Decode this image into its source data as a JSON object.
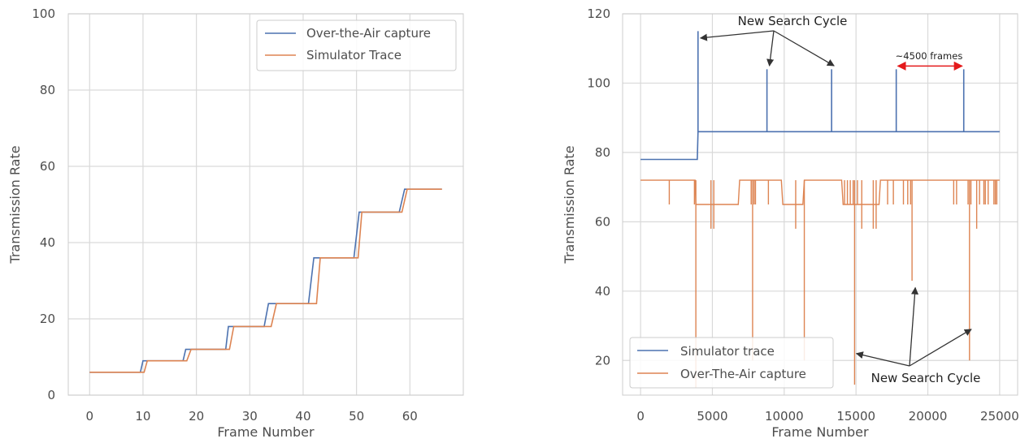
{
  "chart_data": [
    {
      "type": "line",
      "xlabel": "Frame Number",
      "ylabel": "Transmission Rate",
      "xlim": [
        -4,
        70
      ],
      "ylim": [
        0,
        100
      ],
      "xticks": [
        0,
        10,
        20,
        30,
        40,
        50,
        60
      ],
      "yticks": [
        0,
        20,
        40,
        60,
        80,
        100
      ],
      "grid": true,
      "legend_position": "top-right",
      "series": [
        {
          "name": "Over-the-Air capture",
          "color": "#4c72b0",
          "points": [
            [
              0,
              6
            ],
            [
              9.5,
              6
            ],
            [
              10,
              9
            ],
            [
              17.5,
              9
            ],
            [
              18,
              12
            ],
            [
              25.5,
              12
            ],
            [
              26,
              18
            ],
            [
              32.7,
              18
            ],
            [
              33.5,
              24
            ],
            [
              41,
              24
            ],
            [
              42,
              36
            ],
            [
              49.5,
              36
            ],
            [
              50.5,
              48
            ],
            [
              58,
              48
            ],
            [
              59,
              54
            ],
            [
              66,
              54
            ]
          ]
        },
        {
          "name": "Simulator Trace",
          "color": "#dd8452",
          "points": [
            [
              0,
              6
            ],
            [
              10.2,
              6
            ],
            [
              10.8,
              9
            ],
            [
              18.2,
              9
            ],
            [
              19,
              12
            ],
            [
              26.2,
              12
            ],
            [
              27,
              18
            ],
            [
              34,
              18
            ],
            [
              35,
              24
            ],
            [
              42.5,
              24
            ],
            [
              43.2,
              36
            ],
            [
              50.3,
              36
            ],
            [
              51,
              48
            ],
            [
              58.5,
              48
            ],
            [
              59.5,
              54
            ],
            [
              66,
              54
            ]
          ]
        }
      ]
    },
    {
      "type": "line",
      "xlabel": "Frame Number",
      "ylabel": "Transmission Rate",
      "xlim": [
        -1250,
        26250
      ],
      "ylim": [
        10,
        120
      ],
      "xticks": [
        0,
        5000,
        10000,
        15000,
        20000,
        25000
      ],
      "yticks": [
        20,
        40,
        60,
        80,
        100,
        120
      ],
      "grid": true,
      "legend_position": "bottom-left",
      "series": [
        {
          "name": "Simulator trace",
          "color": "#4c72b0",
          "baseline": [
            [
              0,
              78
            ],
            [
              3950,
              78
            ],
            [
              4000,
              86
            ],
            [
              25000,
              86
            ]
          ],
          "spikes": [
            [
              4000,
              115
            ],
            [
              8800,
              104
            ],
            [
              13300,
              104
            ],
            [
              17800,
              104
            ],
            [
              22500,
              104
            ]
          ]
        },
        {
          "name": "Over-The-Air capture",
          "color": "#dd8452",
          "segments": [
            [
              0,
              72
            ],
            [
              3800,
              72
            ],
            [
              3850,
              65
            ],
            [
              6800,
              65
            ],
            [
              6900,
              72
            ],
            [
              9800,
              72
            ],
            [
              9900,
              65
            ],
            [
              11300,
              65
            ],
            [
              11400,
              72
            ],
            [
              14000,
              72
            ],
            [
              14100,
              65
            ],
            [
              16600,
              65
            ],
            [
              16700,
              72
            ],
            [
              25000,
              72
            ]
          ],
          "spikes": [
            [
              2000,
              65
            ],
            [
              3750,
              65
            ],
            [
              4900,
              58
            ],
            [
              5100,
              58
            ],
            [
              7700,
              65
            ],
            [
              7900,
              65
            ],
            [
              8000,
              65
            ],
            [
              8900,
              65
            ],
            [
              10800,
              58
            ],
            [
              14200,
              65
            ],
            [
              14400,
              65
            ],
            [
              14600,
              65
            ],
            [
              14800,
              65
            ],
            [
              15100,
              65
            ],
            [
              15400,
              58
            ],
            [
              16200,
              58
            ],
            [
              16400,
              58
            ],
            [
              17200,
              65
            ],
            [
              17600,
              65
            ],
            [
              18300,
              65
            ],
            [
              18600,
              65
            ],
            [
              18800,
              65
            ],
            [
              21800,
              65
            ],
            [
              22000,
              65
            ],
            [
              22800,
              65
            ],
            [
              23000,
              65
            ],
            [
              23400,
              58
            ],
            [
              23600,
              65
            ],
            [
              23900,
              65
            ],
            [
              24000,
              65
            ],
            [
              24200,
              65
            ],
            [
              24600,
              65
            ],
            [
              24800,
              65
            ],
            [
              3850,
              12
            ],
            [
              7800,
              20
            ],
            [
              11400,
              20
            ],
            [
              14900,
              13
            ],
            [
              18900,
              43
            ],
            [
              22900,
              20
            ],
            [
              24700,
              65
            ]
          ]
        }
      ],
      "annotations": [
        {
          "text": "New Search Cycle",
          "targets": [
            [
              4000,
              113
            ],
            [
              8800,
              105
            ],
            [
              13300,
              105
            ]
          ]
        },
        {
          "text": "New Search Cycle",
          "targets": [
            [
              14800,
              22
            ],
            [
              18900,
              41
            ],
            [
              22800,
              29
            ]
          ]
        },
        {
          "text": "~4500 frames",
          "range": [
            17800,
            22500
          ],
          "y": 104
        }
      ]
    }
  ],
  "colors": {
    "axis_spine": "#cccccc",
    "grid": "#d9d9d9",
    "annotation_arrow": "#333333",
    "range_arrow": "#e41a1c"
  }
}
